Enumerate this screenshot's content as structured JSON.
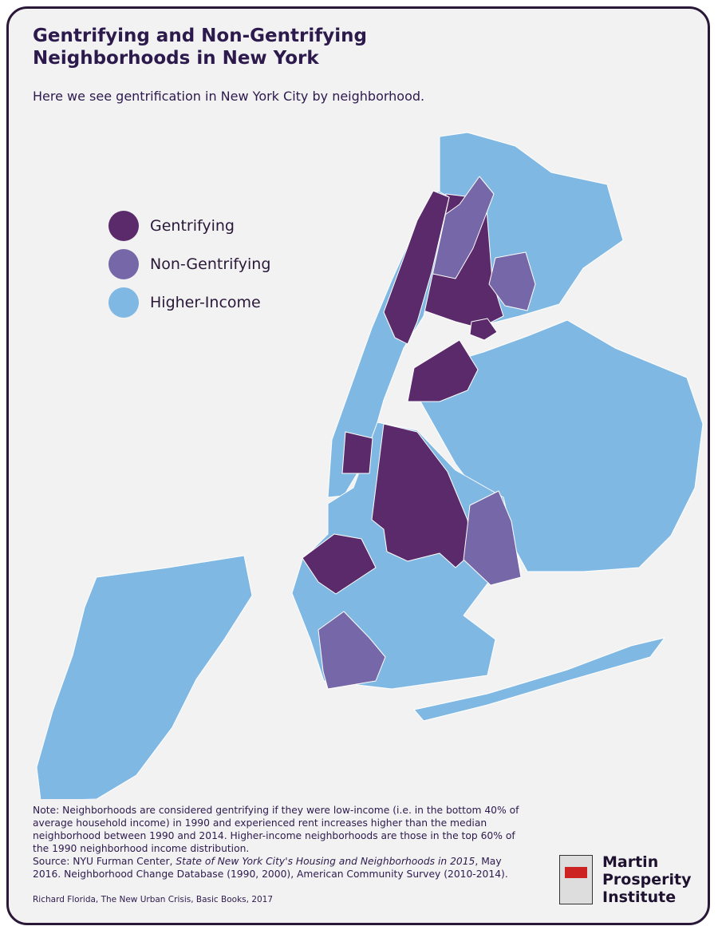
{
  "header": {
    "title": [
      "Gentrifying and Non-Gentrifying",
      "Neighborhoods in New York"
    ],
    "subtitle": "Here we see gentrification in New York City by neighborhood."
  },
  "legend": [
    {
      "label": "Gentrifying",
      "color": "#5a2a6b"
    },
    {
      "label": "Non-Gentrifying",
      "color": "#7668a8"
    },
    {
      "label": "Higher-Income",
      "color": "#80b8e4"
    }
  ],
  "notes": {
    "note": "Note: Neighborhoods are considered gentrifying if they were low-income (i.e. in the bottom 40% of average household income) in 1990 and experienced rent increases higher than the median neighborhood between 1990 and 2014. Higher-income neighborhoods are those in the top 60% of the 1990 neighborhood income distribution.",
    "source_prefix": "Source: NYU Furman Center, ",
    "source_title": "State of New York City's Housing and Neighborhoods in 2015",
    "source_rest": ", May 2016. Neighborhood Change Database (1990, 2000), American Community Survey (2010-2014).",
    "credit": "Richard Florida, The New Urban Crisis, Basic Books, 2017"
  },
  "logo": {
    "lines": [
      "Martin",
      "Prosperity",
      "Institute"
    ]
  }
}
